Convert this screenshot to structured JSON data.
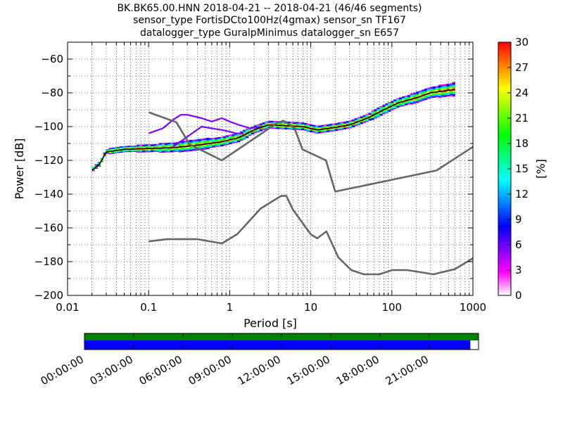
{
  "chart_data": {
    "type": "heatmap",
    "title_lines": [
      "BK.BK65.00.HNN   2018-04-21 -- 2018-04-21  (46/46 segments)",
      "sensor_type FortisDCto100Hz(4gmax) sensor_sn TF167",
      "datalogger_type GuralpMinimus datalogger_sn E657"
    ],
    "xlabel": "Period [s]",
    "ylabel": "Power [dB]",
    "x_scale": "log",
    "xlim": [
      0.01,
      1000
    ],
    "ylim": [
      -200,
      -50
    ],
    "x_ticks": [
      {
        "value": 0.01,
        "label": "0.01"
      },
      {
        "value": 0.1,
        "label": "0.1"
      },
      {
        "value": 1,
        "label": "1"
      },
      {
        "value": 10,
        "label": "10"
      },
      {
        "value": 100,
        "label": "100"
      },
      {
        "value": 1000,
        "label": "1000"
      }
    ],
    "y_ticks": [
      {
        "value": -60,
        "label": "−60"
      },
      {
        "value": -80,
        "label": "−80"
      },
      {
        "value": -100,
        "label": "−100"
      },
      {
        "value": -120,
        "label": "−120"
      },
      {
        "value": -140,
        "label": "−140"
      },
      {
        "value": -160,
        "label": "−160"
      },
      {
        "value": -180,
        "label": "−180"
      },
      {
        "value": -200,
        "label": "−200"
      }
    ],
    "grid": "dotted",
    "colorbar": {
      "label": "[%]",
      "range": [
        0,
        30
      ],
      "ticks": [
        {
          "value": 0,
          "label": "0"
        },
        {
          "value": 3,
          "label": "3"
        },
        {
          "value": 6,
          "label": "6"
        },
        {
          "value": 9,
          "label": "9"
        },
        {
          "value": 12,
          "label": "12"
        },
        {
          "value": 15,
          "label": "15"
        },
        {
          "value": 18,
          "label": "18"
        },
        {
          "value": 21,
          "label": "21"
        },
        {
          "value": 24,
          "label": "24"
        },
        {
          "value": 27,
          "label": "27"
        },
        {
          "value": 30,
          "label": "30"
        }
      ],
      "colors": [
        "#ffffff",
        "#ff00ff",
        "#8000ff",
        "#0000ff",
        "#0080ff",
        "#00ffff",
        "#00ff80",
        "#00ff00",
        "#80ff00",
        "#ffff00",
        "#ff8000",
        "#ff0000"
      ]
    },
    "noise_models": {
      "high": [
        [
          0.1,
          -91.5
        ],
        [
          0.22,
          -97.4
        ],
        [
          0.32,
          -110.5
        ],
        [
          0.8,
          -120
        ],
        [
          3.8,
          -98
        ],
        [
          4.6,
          -96.5
        ],
        [
          6.3,
          -101
        ],
        [
          7.9,
          -113.5
        ],
        [
          15.4,
          -120
        ],
        [
          20,
          -138.5
        ],
        [
          354.8,
          -126
        ],
        [
          1000,
          -112
        ]
      ],
      "low": [
        [
          0.1,
          -168
        ],
        [
          0.17,
          -166.7
        ],
        [
          0.4,
          -166.7
        ],
        [
          0.8,
          -169.2
        ],
        [
          1.24,
          -163.7
        ],
        [
          2.4,
          -148.6
        ],
        [
          4.3,
          -141.1
        ],
        [
          5,
          -141.1
        ],
        [
          6,
          -149
        ],
        [
          10,
          -163.8
        ],
        [
          12,
          -166.2
        ],
        [
          15.6,
          -162.1
        ],
        [
          21.9,
          -177.5
        ],
        [
          31.6,
          -185
        ],
        [
          45,
          -187.5
        ],
        [
          70,
          -187.5
        ],
        [
          101,
          -185
        ],
        [
          154,
          -185
        ],
        [
          328,
          -187.5
        ],
        [
          600,
          -184.4
        ],
        [
          1000,
          -178
        ]
      ]
    },
    "ppsd_band": [
      [
        0.02,
        -126
      ],
      [
        0.025,
        -122
      ],
      [
        0.03,
        -115
      ],
      [
        0.05,
        -113.5
      ],
      [
        0.1,
        -113
      ],
      [
        0.2,
        -112.5
      ],
      [
        0.4,
        -111
      ],
      [
        0.8,
        -109
      ],
      [
        1.3,
        -106.5
      ],
      [
        2,
        -102
      ],
      [
        3,
        -99
      ],
      [
        5,
        -99.5
      ],
      [
        8,
        -100
      ],
      [
        12,
        -102
      ],
      [
        20,
        -100.5
      ],
      [
        30,
        -99
      ],
      [
        50,
        -95
      ],
      [
        80,
        -90
      ],
      [
        120,
        -86
      ],
      [
        200,
        -83
      ],
      [
        300,
        -80
      ],
      [
        600,
        -78
      ]
    ],
    "ppsd_spread": [
      [
        0.02,
        1
      ],
      [
        0.05,
        1.5
      ],
      [
        0.1,
        2
      ],
      [
        0.3,
        3
      ],
      [
        1,
        2.5
      ],
      [
        3,
        2
      ],
      [
        10,
        2
      ],
      [
        30,
        2
      ],
      [
        100,
        2.5
      ],
      [
        300,
        3
      ],
      [
        700,
        4
      ]
    ],
    "upper_mode_curve": [
      [
        0.1,
        -104
      ],
      [
        0.15,
        -101
      ],
      [
        0.2,
        -96
      ],
      [
        0.25,
        -93
      ],
      [
        0.3,
        -93
      ],
      [
        0.45,
        -95
      ],
      [
        0.6,
        -97
      ],
      [
        0.8,
        -95
      ],
      [
        1.0,
        -97
      ],
      [
        1.3,
        -99
      ],
      [
        1.8,
        -101
      ],
      [
        2.5,
        -100
      ]
    ],
    "lower_mode_curve": [
      [
        0.2,
        -112
      ],
      [
        0.3,
        -106
      ],
      [
        0.45,
        -100
      ],
      [
        0.6,
        -101
      ],
      [
        0.8,
        -102
      ],
      [
        1.0,
        -103
      ],
      [
        1.2,
        -104
      ],
      [
        1.5,
        -104
      ]
    ],
    "time_axis": {
      "labels": [
        "00:00:00",
        "03:00:00",
        "06:00:00",
        "09:00:00",
        "12:00:00",
        "15:00:00",
        "18:00:00",
        "21:00:00"
      ],
      "hours": [
        0,
        3,
        6,
        9,
        12,
        15,
        18,
        21
      ],
      "span_hours": 24,
      "available_until_hours": 23.5,
      "available_color": "#0000ff",
      "processed_color": "#008000"
    }
  }
}
